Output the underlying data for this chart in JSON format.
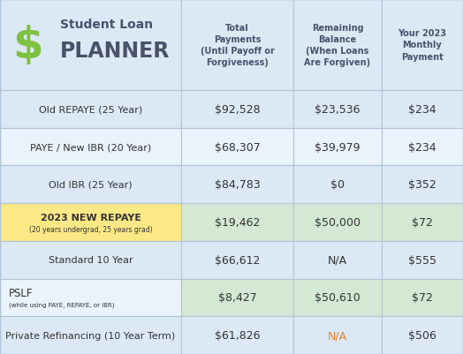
{
  "background_color": "#dce9f5",
  "logo_dollar_color": "#7dc242",
  "logo_text_color": "#4a516a",
  "header_text_color": "#4a516a",
  "col_headers": [
    "Total\nPayments\n(Until Payoff or\nForgiveness)",
    "Remaining\nBalance\n(When Loans\nAre Forgiven)",
    "Your 2023\nMonthly\nPayment"
  ],
  "rows": [
    {
      "label": "Old REPAYE (25 Year)",
      "label_small": "",
      "bold_label": false,
      "col1": "$92,528",
      "col2": "$23,536",
      "col2_color": "#333333",
      "col3": "$234",
      "label_bg": "#dce9f5",
      "col1_bg": "#dce9f5",
      "col2_bg": "#dce9f5",
      "col3_bg": "#dce9f5"
    },
    {
      "label": "PAYE / New IBR (20 Year)",
      "label_small": "",
      "bold_label": false,
      "col1": "$68,307",
      "col2": "$39,979",
      "col2_color": "#333333",
      "col3": "$234",
      "label_bg": "#eaf2fb",
      "col1_bg": "#eaf2fb",
      "col2_bg": "#eaf2fb",
      "col3_bg": "#eaf2fb"
    },
    {
      "label": "Old IBR (25 Year)",
      "label_small": "",
      "bold_label": false,
      "col1": "$84,783",
      "col2": "$0",
      "col2_color": "#333333",
      "col3": "$352",
      "label_bg": "#dce9f5",
      "col1_bg": "#dce9f5",
      "col2_bg": "#dce9f5",
      "col3_bg": "#dce9f5"
    },
    {
      "label": "2023 NEW REPAYE",
      "label_small": "(20 years undergrad, 25 years grad)",
      "bold_label": true,
      "col1": "$19,462",
      "col2": "$50,000",
      "col2_color": "#333333",
      "col3": "$72",
      "label_bg": "#fce986",
      "col1_bg": "#d4e8d4",
      "col2_bg": "#d4e8d4",
      "col3_bg": "#d4e8d4"
    },
    {
      "label": "Standard 10 Year",
      "label_small": "",
      "bold_label": false,
      "col1": "$66,612",
      "col2": "N/A",
      "col2_color": "#333333",
      "col3": "$555",
      "label_bg": "#dce9f5",
      "col1_bg": "#dce9f5",
      "col2_bg": "#dce9f5",
      "col3_bg": "#dce9f5"
    },
    {
      "label": "PSLF",
      "label_small": "(while using PAYE, REPAYE, or IBR)",
      "bold_label": false,
      "col1": "$8,427",
      "col2": "$50,610",
      "col2_color": "#333333",
      "col3": "$72",
      "label_bg": "#eaf2fb",
      "col1_bg": "#d4e8d4",
      "col2_bg": "#d4e8d4",
      "col3_bg": "#d4e8d4"
    },
    {
      "label": "Private Refinancing (10 Year Term)",
      "label_small": "",
      "bold_label": false,
      "col1": "$61,826",
      "col2": "N/A",
      "col2_color": "#e8832a",
      "col3": "$506",
      "label_bg": "#dce9f5",
      "col1_bg": "#dce9f5",
      "col2_bg": "#dce9f5",
      "col3_bg": "#dce9f5"
    }
  ]
}
